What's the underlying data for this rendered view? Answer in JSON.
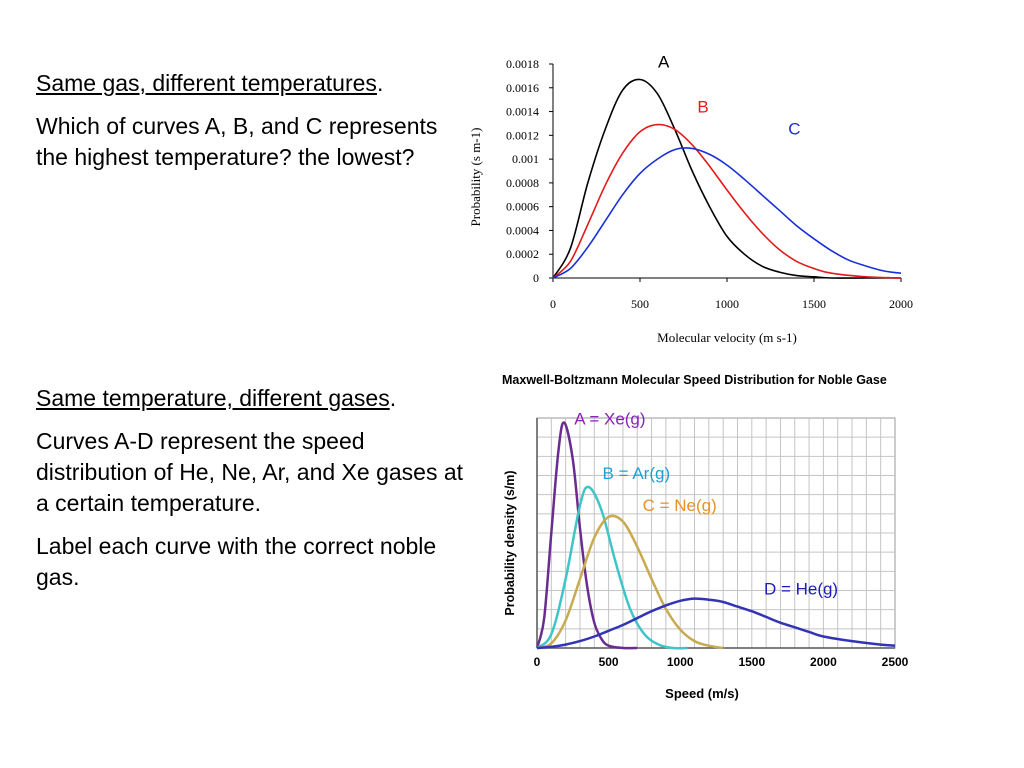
{
  "section1": {
    "heading": "Same gas, different temperatures",
    "heading_suffix": ".",
    "question": "Which of curves A, B, and C represents the highest temperature? the lowest?"
  },
  "section2": {
    "heading": "Same temperature, different gases",
    "heading_suffix": ".",
    "paragraph1": "Curves A-D represent the speed distribution of He, Ne, Ar, and Xe gases at a certain temperature.",
    "paragraph2": "Label each curve with the correct noble gas."
  },
  "chart_data": [
    {
      "type": "line",
      "title": "",
      "xlabel": "Molecular velocity (m s-1)",
      "ylabel": "Probability (s m-1)",
      "xlim": [
        0,
        2000
      ],
      "ylim": [
        0,
        0.0018
      ],
      "x_ticks": [
        "0",
        "500",
        "1000",
        "1500",
        "2000"
      ],
      "y_ticks": [
        "0",
        "0.0002",
        "0.0004",
        "0.0006",
        "0.0008",
        "0.001",
        "0.0012",
        "0.0014",
        "0.0016",
        "0.0018"
      ],
      "grid": false,
      "series": [
        {
          "name": "A",
          "color": "#000000",
          "x": [
            0,
            100,
            200,
            300,
            400,
            500,
            600,
            700,
            800,
            900,
            1000,
            1100,
            1200,
            1300,
            1400,
            1500,
            1600,
            1800,
            2000
          ],
          "y": [
            0,
            0.00025,
            0.0008,
            0.00125,
            0.00158,
            0.00167,
            0.00155,
            0.00125,
            0.0009,
            0.0006,
            0.00035,
            0.0002,
            0.0001,
            5e-05,
            2e-05,
            1e-05,
            0,
            0,
            0
          ]
        },
        {
          "name": "B",
          "color": "#e41a1c",
          "x": [
            0,
            100,
            200,
            300,
            400,
            500,
            600,
            700,
            800,
            900,
            1000,
            1100,
            1200,
            1300,
            1400,
            1500,
            1600,
            1800,
            2000
          ],
          "y": [
            0,
            0.00014,
            0.00045,
            0.00078,
            0.00105,
            0.00123,
            0.00129,
            0.00125,
            0.00112,
            0.00094,
            0.00074,
            0.00055,
            0.00038,
            0.00024,
            0.00014,
            8e-05,
            4e-05,
            1e-05,
            0
          ]
        },
        {
          "name": "C",
          "color": "#1a2fd6",
          "x": [
            0,
            100,
            200,
            300,
            400,
            500,
            600,
            700,
            800,
            900,
            1000,
            1100,
            1200,
            1300,
            1400,
            1500,
            1600,
            1700,
            1800,
            1900,
            2000
          ],
          "y": [
            0,
            8e-05,
            0.00026,
            0.00048,
            0.0007,
            0.00088,
            0.001,
            0.00108,
            0.00109,
            0.00104,
            0.00095,
            0.00083,
            0.0007,
            0.00057,
            0.00044,
            0.00033,
            0.00023,
            0.00015,
            0.0001,
            6e-05,
            4e-05
          ]
        }
      ]
    },
    {
      "type": "line",
      "title": "Maxwell-Boltzmann Molecular Speed Distribution for Noble Gase",
      "xlabel": "Speed (m/s)",
      "ylabel": "Probability density (s/m)",
      "xlim": [
        0,
        2500
      ],
      "ylim": [
        0,
        1
      ],
      "x_ticks": [
        "0",
        "500",
        "1000",
        "1500",
        "2000",
        "2500"
      ],
      "grid": true,
      "series": [
        {
          "name": "A = Xe(g)",
          "color": "#6a2d8f",
          "x": [
            0,
            50,
            100,
            150,
            190,
            250,
            300,
            350,
            400,
            450,
            500,
            600,
            700
          ],
          "y": [
            0,
            0.13,
            0.5,
            0.86,
            0.98,
            0.82,
            0.52,
            0.27,
            0.11,
            0.04,
            0.01,
            0,
            0
          ]
        },
        {
          "name": "B = Ar(g)",
          "color": "#3fc4c8",
          "x": [
            0,
            100,
            200,
            300,
            360,
            450,
            550,
            650,
            750,
            850,
            950,
            1050
          ],
          "y": [
            0,
            0.06,
            0.3,
            0.62,
            0.7,
            0.6,
            0.37,
            0.17,
            0.06,
            0.015,
            0,
            0
          ]
        },
        {
          "name": "C = Ne(g)",
          "color": "#c8aa50",
          "x": [
            0,
            100,
            200,
            300,
            400,
            500,
            600,
            700,
            800,
            900,
            1000,
            1100,
            1200,
            1300
          ],
          "y": [
            0,
            0.02,
            0.12,
            0.3,
            0.48,
            0.57,
            0.55,
            0.44,
            0.3,
            0.17,
            0.08,
            0.03,
            0.01,
            0
          ]
        },
        {
          "name": "D = He(g)",
          "color": "#3333b5",
          "x": [
            0,
            100,
            200,
            300,
            400,
            500,
            600,
            700,
            800,
            900,
            1000,
            1100,
            1200,
            1300,
            1400,
            1500,
            1600,
            1700,
            1800,
            1900,
            2000,
            2200,
            2400,
            2500
          ],
          "y": [
            0,
            0.005,
            0.015,
            0.03,
            0.05,
            0.075,
            0.1,
            0.13,
            0.16,
            0.185,
            0.205,
            0.215,
            0.21,
            0.2,
            0.18,
            0.16,
            0.135,
            0.11,
            0.09,
            0.07,
            0.05,
            0.03,
            0.015,
            0.01
          ]
        }
      ]
    }
  ]
}
